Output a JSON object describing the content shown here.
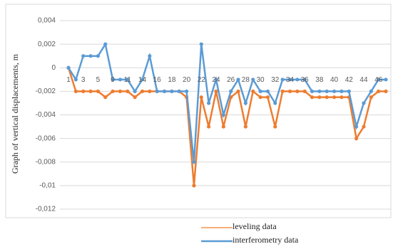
{
  "chart_data": {
    "type": "line",
    "y_label": "Graph of vertical displacements, m",
    "categories": [
      "1",
      null,
      "3",
      null,
      "5",
      null,
      "9",
      null,
      "11",
      null,
      "14",
      null,
      "16",
      null,
      "18",
      null,
      "20",
      null,
      "22",
      null,
      "24",
      null,
      "26",
      null,
      "28",
      null,
      "30",
      null,
      "32",
      null,
      "34",
      null,
      "36",
      null,
      "38",
      null,
      "40",
      null,
      "42",
      null,
      "44",
      null,
      "46",
      null
    ],
    "series": [
      {
        "name": "leveling data",
        "color": "#ed7d31",
        "values": [
          0,
          -0.002,
          -0.002,
          -0.002,
          -0.002,
          -0.0025,
          -0.002,
          -0.002,
          -0.002,
          -0.0025,
          -0.002,
          -0.002,
          -0.002,
          -0.002,
          -0.002,
          -0.002,
          -0.0025,
          -0.01,
          -0.0025,
          -0.005,
          -0.002,
          -0.005,
          -0.0025,
          -0.002,
          -0.005,
          -0.002,
          -0.0025,
          -0.0025,
          -0.005,
          -0.002,
          -0.002,
          -0.002,
          -0.002,
          -0.0025,
          -0.0025,
          -0.0025,
          -0.0025,
          -0.0025,
          -0.0025,
          -0.006,
          -0.005,
          -0.0025,
          -0.002,
          -0.002
        ]
      },
      {
        "name": "interferometry data",
        "color": "#5b9bd5",
        "values": [
          0,
          -0.001,
          0.001,
          0.001,
          0.001,
          0.002,
          -0.001,
          -0.001,
          -0.001,
          -0.002,
          -0.001,
          0.001,
          -0.002,
          -0.002,
          -0.002,
          -0.002,
          -0.002,
          -0.008,
          0.002,
          -0.003,
          -0.001,
          -0.004,
          -0.002,
          -0.001,
          -0.003,
          -0.001,
          -0.002,
          -0.002,
          -0.003,
          -0.001,
          -0.001,
          -0.001,
          -0.001,
          -0.002,
          -0.002,
          -0.002,
          -0.002,
          -0.002,
          -0.002,
          -0.005,
          -0.003,
          -0.002,
          -0.001,
          -0.001
        ]
      }
    ],
    "ylim": [
      -0.012,
      0.004
    ],
    "yticks": [
      {
        "value": 0.004,
        "label": "0,004"
      },
      {
        "value": 0.002,
        "label": "0,002"
      },
      0,
      {
        "value": -0.002,
        "label": "-0,002"
      },
      {
        "value": -0.004,
        "label": "-0,004"
      },
      {
        "value": -0.006,
        "label": "-0,006"
      },
      {
        "value": -0.008,
        "label": "-0,008"
      },
      {
        "value": -0.01,
        "label": "-0,01"
      },
      {
        "value": -0.012,
        "label": "-0,012"
      }
    ],
    "grid": true
  }
}
